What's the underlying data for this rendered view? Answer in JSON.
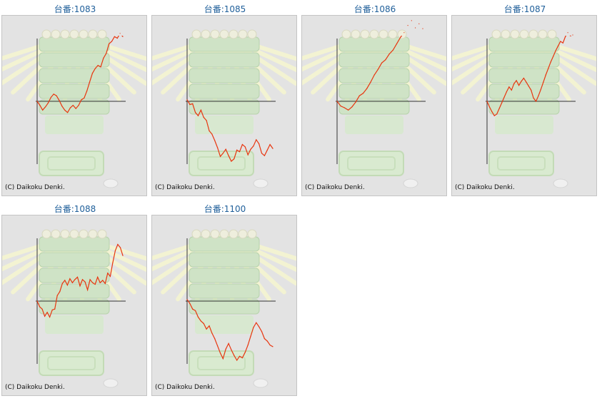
{
  "machines": [
    {
      "title": "台番:1083",
      "copyright": "(C) Daikoku Denki.",
      "chart_data": {
        "type": "line",
        "title": "台番:1083",
        "xlabel": "",
        "ylabel": "",
        "grid": false,
        "y": [
          0,
          -5,
          -11,
          -7,
          -2,
          5,
          9,
          7,
          1,
          -6,
          -11,
          -14,
          -8,
          -5,
          -9,
          -5,
          2,
          4,
          13,
          24,
          35,
          41,
          45,
          43,
          54,
          60,
          72,
          75,
          81,
          79,
          85,
          81
        ]
      }
    },
    {
      "title": "台番:1085",
      "copyright": "(C) Daikoku Denki.",
      "chart_data": {
        "type": "line",
        "title": "台番:1085",
        "xlabel": "",
        "ylabel": "",
        "grid": false,
        "y": [
          2,
          -4,
          -3,
          -14,
          -18,
          -11,
          -20,
          -24,
          -37,
          -41,
          -49,
          -58,
          -69,
          -65,
          -60,
          -68,
          -75,
          -72,
          -61,
          -63,
          -54,
          -57,
          -67,
          -60,
          -56,
          -48,
          -53,
          -65,
          -68,
          -61,
          -54,
          -59
        ]
      }
    },
    {
      "title": "台番:1086",
      "copyright": "(C) Daikoku Denki.",
      "chart_data": {
        "type": "line",
        "title": "台番:1086",
        "xlabel": "",
        "ylabel": "",
        "grid": false,
        "y": [
          0,
          -6,
          -8,
          -11,
          -7,
          -1,
          7,
          10,
          16,
          24,
          33,
          40,
          48,
          52,
          59,
          64,
          72,
          80,
          86,
          95,
          101,
          92,
          97,
          91
        ]
      }
    },
    {
      "title": "台番:1087",
      "copyright": "(C) Daikoku Denki.",
      "chart_data": {
        "type": "line",
        "title": "台番:1087",
        "xlabel": "",
        "ylabel": "",
        "grid": false,
        "y": [
          0,
          -7,
          -13,
          -18,
          -16,
          -9,
          -2,
          5,
          12,
          18,
          14,
          22,
          26,
          20,
          25,
          29,
          24,
          19,
          14,
          4,
          0,
          7,
          15,
          24,
          33,
          41,
          49,
          56,
          63,
          69,
          75,
          73,
          81,
          86,
          82,
          83
        ]
      }
    },
    {
      "title": "台番:1088",
      "copyright": "(C) Daikoku Denki.",
      "chart_data": {
        "type": "line",
        "title": "台番:1088",
        "xlabel": "",
        "ylabel": "",
        "grid": false,
        "y": [
          0,
          -7,
          -10,
          -19,
          -14,
          -20,
          -11,
          -10,
          7,
          12,
          22,
          26,
          20,
          28,
          23,
          27,
          30,
          19,
          27,
          24,
          14,
          27,
          23,
          21,
          30,
          23,
          26,
          22,
          35,
          31,
          48,
          63,
          71,
          67,
          57
        ]
      }
    },
    {
      "title": "台番:1100",
      "copyright": "(C) Daikoku Denki.",
      "chart_data": {
        "type": "line",
        "title": "台番:1100",
        "xlabel": "",
        "ylabel": "",
        "grid": false,
        "y": [
          2,
          -3,
          -10,
          -12,
          -20,
          -25,
          -28,
          -35,
          -31,
          -40,
          -47,
          -56,
          -65,
          -72,
          -60,
          -53,
          -61,
          -68,
          -74,
          -69,
          -71,
          -64,
          -55,
          -44,
          -33,
          -27,
          -32,
          -38,
          -47,
          -50,
          -55,
          -57
        ]
      }
    }
  ]
}
